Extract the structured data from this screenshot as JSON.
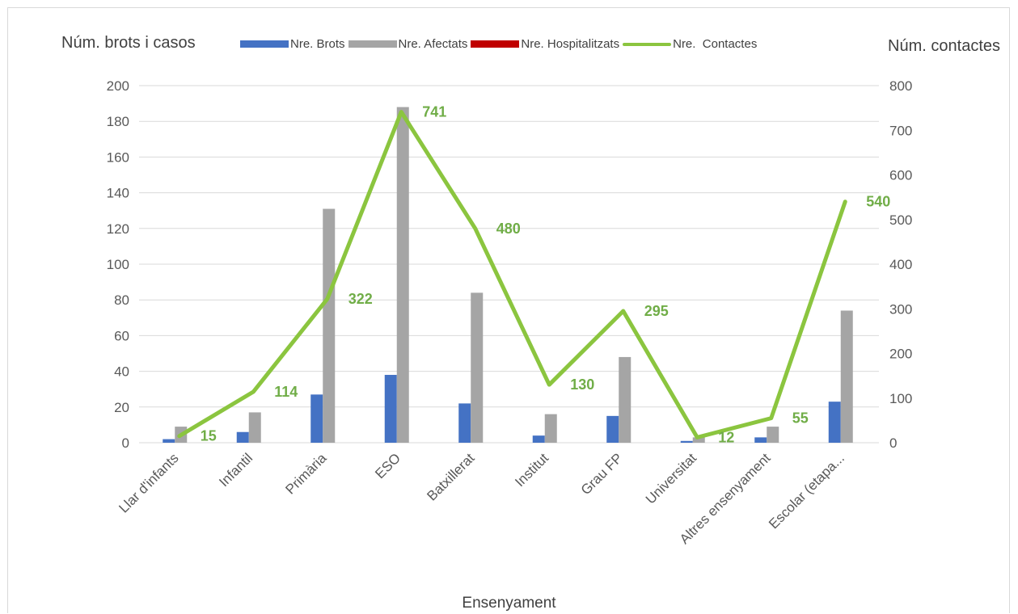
{
  "chart_data": {
    "type": "bar",
    "y_left_label": "Núm. brots i casos",
    "y_right_label": "Núm. contactes",
    "xlabel": "Ensenyament",
    "categories": [
      "Llar d'infants",
      "Infantil",
      "Primària",
      "ESO",
      "Batxillerat",
      "Institut",
      "Grau FP",
      "Universitat",
      "Altres ensenyament",
      "Escolar (etapa..."
    ],
    "y_left_ticks": [
      "0",
      "20",
      "40",
      "60",
      "80",
      "100",
      "120",
      "140",
      "160",
      "180",
      "200"
    ],
    "y_right_ticks": [
      "0",
      "100",
      "200",
      "300",
      "400",
      "500",
      "600",
      "700",
      "800"
    ],
    "ylim_left": [
      0,
      200
    ],
    "ylim_right": [
      0,
      800
    ],
    "grid": true,
    "legend_position": "top",
    "series": [
      {
        "name": "Nre. Brots",
        "type": "bar",
        "axis": "left",
        "color": "#4472C4",
        "values": [
          2,
          6,
          27,
          38,
          22,
          4,
          15,
          1,
          3,
          23
        ]
      },
      {
        "name": "Nre. Afectats",
        "type": "bar",
        "axis": "left",
        "color": "#A5A5A5",
        "values": [
          9,
          17,
          131,
          188,
          84,
          16,
          48,
          3,
          9,
          74
        ]
      },
      {
        "name": "Nre. Hospitalitzats",
        "type": "bar",
        "axis": "left",
        "color": "#C00000",
        "values": [
          0,
          0,
          0,
          0,
          0,
          0,
          0,
          0,
          0,
          0
        ]
      },
      {
        "name": "Nre.  Contactes",
        "type": "line",
        "axis": "right",
        "color": "#8BC53F",
        "values": [
          15,
          114,
          322,
          741,
          480,
          130,
          295,
          12,
          55,
          540
        ],
        "data_labels": [
          "15",
          "114",
          "322",
          "741",
          "480",
          "130",
          "295",
          "12",
          "55",
          "540"
        ]
      }
    ]
  }
}
